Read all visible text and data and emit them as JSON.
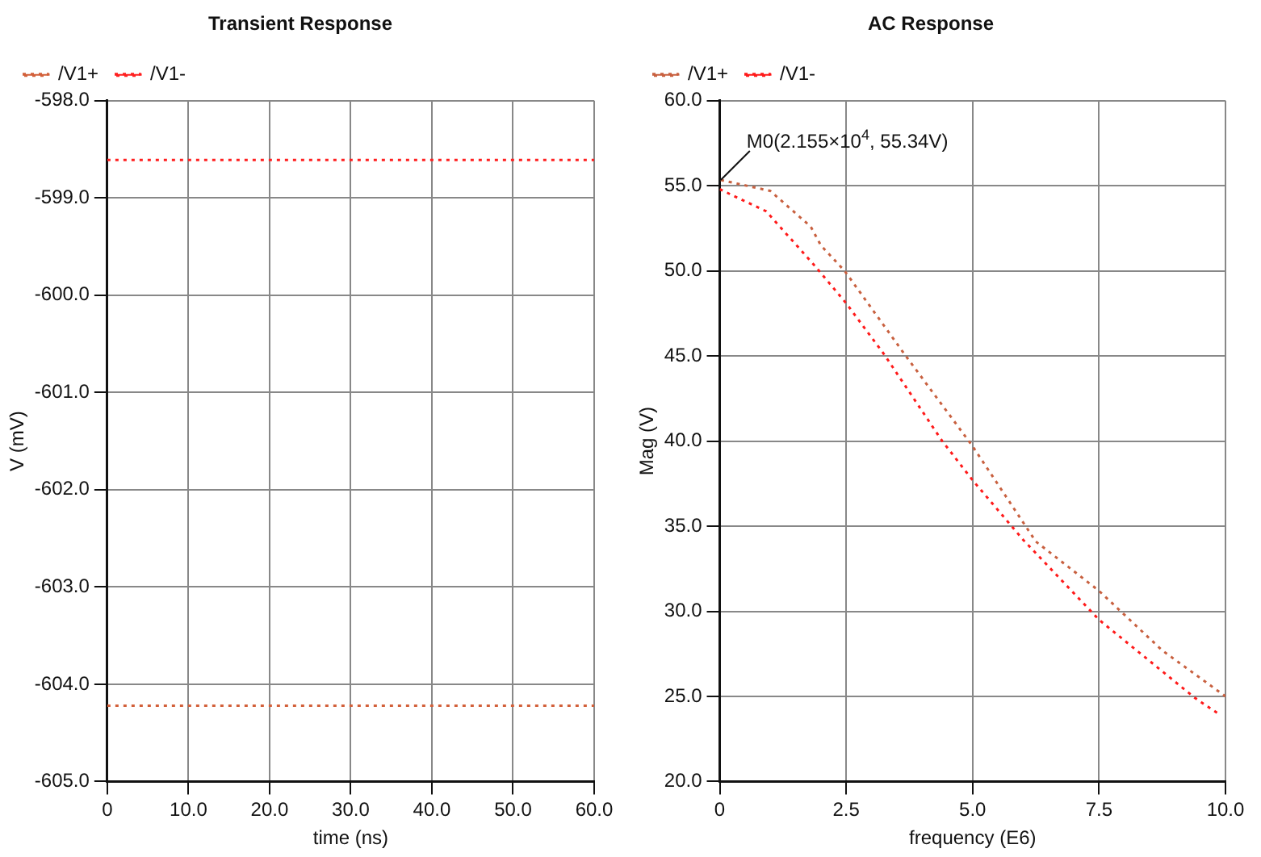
{
  "chart_data": [
    {
      "type": "line",
      "title": "Transient Response",
      "xlabel": "time (ns)",
      "ylabel": "V (mV)",
      "x": [
        0,
        60
      ],
      "series": [
        {
          "name": "/V1+",
          "color": "#d2603a",
          "values": [
            -604.22,
            -604.22
          ]
        },
        {
          "name": "/V1-",
          "color": "#ff2020",
          "values": [
            -598.61,
            -598.61
          ]
        }
      ],
      "xlim": [
        0,
        60
      ],
      "xticks": [
        {
          "value": 0,
          "label": "0"
        },
        {
          "value": 10,
          "label": "10.0"
        },
        {
          "value": 20,
          "label": "20.0"
        },
        {
          "value": 30,
          "label": "30.0"
        },
        {
          "value": 40,
          "label": "40.0"
        },
        {
          "value": 50,
          "label": "50.0"
        },
        {
          "value": 60,
          "label": "60.0"
        }
      ],
      "ylim": [
        -605,
        -598
      ],
      "yticks": [
        {
          "value": -605,
          "label": "-605.0"
        },
        {
          "value": -604,
          "label": "-604.0"
        },
        {
          "value": -603,
          "label": "-603.0"
        },
        {
          "value": -602,
          "label": "-602.0"
        },
        {
          "value": -601,
          "label": "-601.0"
        },
        {
          "value": -600,
          "label": "-600.0"
        },
        {
          "value": -599,
          "label": "-599.0"
        },
        {
          "value": -598,
          "label": "-598.0"
        }
      ],
      "grid": true,
      "legend": "top left",
      "line_style": "dotted",
      "marker": "none"
    },
    {
      "type": "line",
      "title": "AC Response",
      "xlabel": "frequency (E6)",
      "ylabel": "Mag (V)",
      "series": [
        {
          "name": "/V1+",
          "color": "#c8603f",
          "x": [
            0.02155,
            1.0,
            1.8,
            2.0,
            2.47,
            3.68,
            5.0,
            6.25,
            7.5,
            8.75,
            10.0
          ],
          "values": [
            55.34,
            54.7,
            52.6,
            51.5,
            50.0,
            45.0,
            39.7,
            34.1,
            31.2,
            27.7,
            25.0
          ]
        },
        {
          "name": "/V1-",
          "color": "#ff1a1a",
          "x": [
            0,
            0.92,
            1.88,
            2.5,
            3.25,
            4.4,
            5.0,
            6.0,
            7.5,
            9.4,
            9.9
          ],
          "values": [
            54.8,
            53.5,
            50.3,
            48.1,
            45.1,
            40.0,
            37.7,
            34.2,
            29.5,
            24.9,
            23.9
          ]
        }
      ],
      "xlim": [
        0,
        10
      ],
      "xticks": [
        {
          "value": 0,
          "label": "0"
        },
        {
          "value": 2.5,
          "label": "2.5"
        },
        {
          "value": 5,
          "label": "5.0"
        },
        {
          "value": 7.5,
          "label": "7.5"
        },
        {
          "value": 10,
          "label": "10.0"
        }
      ],
      "ylim": [
        20,
        60
      ],
      "yticks": [
        {
          "value": 20,
          "label": "20.0"
        },
        {
          "value": 25,
          "label": "25.0"
        },
        {
          "value": 30,
          "label": "30.0"
        },
        {
          "value": 35,
          "label": "35.0"
        },
        {
          "value": 40,
          "label": "40.0"
        },
        {
          "value": 45,
          "label": "45.0"
        },
        {
          "value": 50,
          "label": "50.0"
        },
        {
          "value": 55,
          "label": "55.0"
        },
        {
          "value": 60,
          "label": "60.0"
        }
      ],
      "annotations": [
        {
          "text": "M0(2.155×10$^{4}$, 55.34V)",
          "x": 0.02155,
          "y": 55.34
        }
      ],
      "grid": true,
      "legend": "top left",
      "line_style": "dotted",
      "marker": "none"
    }
  ]
}
